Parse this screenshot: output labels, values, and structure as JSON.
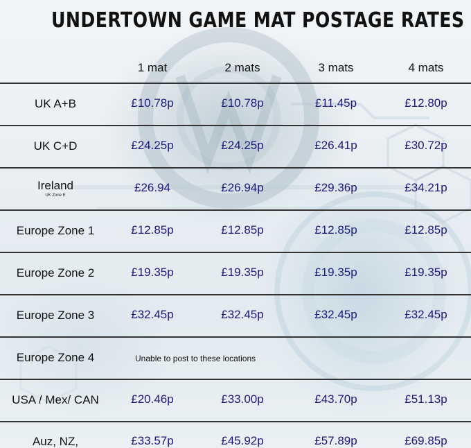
{
  "title": "UNDERTOWN GAME MAT POSTAGE RATES",
  "columns": [
    "1 mat",
    "2 mats",
    "3 mats",
    "4 mats"
  ],
  "colors": {
    "price_text": "#1a1a7e",
    "label_text": "#111111",
    "rule": "#333333"
  },
  "rows": [
    {
      "region": "UK A+B",
      "sub": "",
      "prices": [
        "£10.78p",
        "£10.78p",
        "£11.45p",
        "£12.80p"
      ],
      "note": ""
    },
    {
      "region": "UK C+D",
      "sub": "",
      "prices": [
        "£24.25p",
        "£24.25p",
        "£26.41p",
        "£30.72p"
      ],
      "note": ""
    },
    {
      "region": "Ireland",
      "sub": "UK Zone E",
      "prices": [
        "£26.94",
        "£26.94p",
        "£29.36p",
        "£34.21p"
      ],
      "note": ""
    },
    {
      "region": "Europe Zone 1",
      "sub": "",
      "prices": [
        "£12.85p",
        "£12.85p",
        "£12.85p",
        "£12.85p"
      ],
      "note": ""
    },
    {
      "region": "Europe Zone 2",
      "sub": "",
      "prices": [
        "£19.35p",
        "£19.35p",
        "£19.35p",
        "£19.35p"
      ],
      "note": ""
    },
    {
      "region": "Europe Zone 3",
      "sub": "",
      "prices": [
        "£32.45p",
        "£32.45p",
        "£32.45p",
        "£32.45p"
      ],
      "note": ""
    },
    {
      "region": "Europe Zone 4",
      "sub": "",
      "prices": [
        "",
        "",
        "",
        ""
      ],
      "note": "Unable to post to these locations"
    },
    {
      "region": "USA / Mex/ CAN",
      "sub": "",
      "prices": [
        "£20.46p",
        "£33.00p",
        "£43.70p",
        "£51.13p"
      ],
      "note": ""
    },
    {
      "region": "Auz, NZ,",
      "sub": "",
      "prices": [
        "£33.57p",
        "£45.92p",
        "£57.89p",
        "£69.85p"
      ],
      "note": ""
    }
  ]
}
